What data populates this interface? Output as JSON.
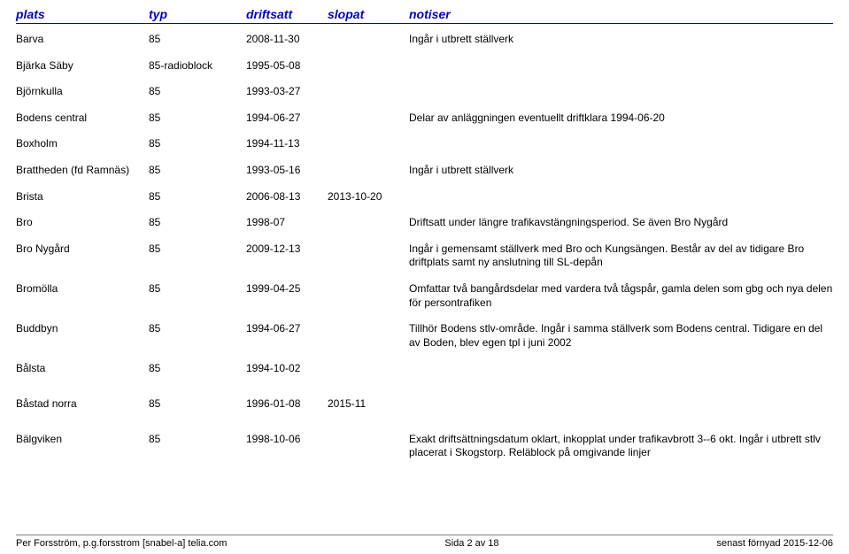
{
  "header": {
    "plats": "plats",
    "typ": "typ",
    "driftsatt": "driftsatt",
    "slopat": "slopat",
    "notiser": "notiser"
  },
  "rows": [
    {
      "plats": "Barva",
      "typ": "85",
      "driftsatt": "2008-11-30",
      "slopat": "",
      "notiser": "Ingår i utbrett ställverk"
    },
    {
      "plats": "Bjärka Säby",
      "typ": "85-radioblock",
      "driftsatt": "1995-05-08",
      "slopat": "",
      "notiser": ""
    },
    {
      "plats": "Björnkulla",
      "typ": "85",
      "driftsatt": "1993-03-27",
      "slopat": "",
      "notiser": ""
    },
    {
      "plats": "Bodens central",
      "typ": "85",
      "driftsatt": "1994-06-27",
      "slopat": "",
      "notiser": "Delar av anläggningen eventuellt driftklara 1994-06-20"
    },
    {
      "plats": "Boxholm",
      "typ": "85",
      "driftsatt": "1994-11-13",
      "slopat": "",
      "notiser": ""
    },
    {
      "plats": "Brattheden (fd Ramnäs)",
      "typ": "85",
      "driftsatt": "1993-05-16",
      "slopat": "",
      "notiser": "Ingår i utbrett ställverk"
    },
    {
      "plats": "Brista",
      "typ": "85",
      "driftsatt": "2006-08-13",
      "slopat": "2013-10-20",
      "notiser": ""
    },
    {
      "plats": "Bro",
      "typ": "85",
      "driftsatt": "1998-07",
      "slopat": "",
      "notiser": "Driftsatt under längre trafikavstängningsperiod. Se även Bro Nygård"
    },
    {
      "plats": "Bro Nygård",
      "typ": "85",
      "driftsatt": "2009-12-13",
      "slopat": "",
      "notiser": "Ingår i gemensamt ställverk med Bro och Kungsängen. Består av del av tidigare Bro driftplats samt ny anslutning till SL-depån"
    },
    {
      "plats": "Bromölla",
      "typ": "85",
      "driftsatt": "1999-04-25",
      "slopat": "",
      "notiser": "Omfattar två bangårdsdelar med vardera två tågspår, gamla delen som gbg och nya delen för persontrafiken"
    },
    {
      "plats": "Buddbyn",
      "typ": "85",
      "driftsatt": "1994-06-27",
      "slopat": "",
      "notiser": "Tillhör Bodens stlv-område. Ingår i samma ställverk som Bodens central. Tidigare en del av Boden, blev egen tpl i juni 2002"
    },
    {
      "plats": "Bålsta",
      "typ": "85",
      "driftsatt": "1994-10-02",
      "slopat": "",
      "notiser": ""
    }
  ],
  "section2_rows": [
    {
      "plats": "Båstad norra",
      "typ": "85",
      "driftsatt": "1996-01-08",
      "slopat": "2015-11",
      "notiser": ""
    }
  ],
  "section3_rows": [
    {
      "plats": "Bälgviken",
      "typ": "85",
      "driftsatt": "1998-10-06",
      "slopat": "",
      "notiser": "Exakt driftsättningsdatum oklart, inkopplat under trafikavbrott 3--6 okt. Ingår i utbrett stlv placerat i Skogstorp. Reläblock på omgivande linjer"
    }
  ],
  "footer": {
    "left": "Per Forsström, p.g.forsstrom [snabel-a] telia.com",
    "center": "Sida 2 av 18",
    "right": "senast förnyad 2015-12-06"
  }
}
